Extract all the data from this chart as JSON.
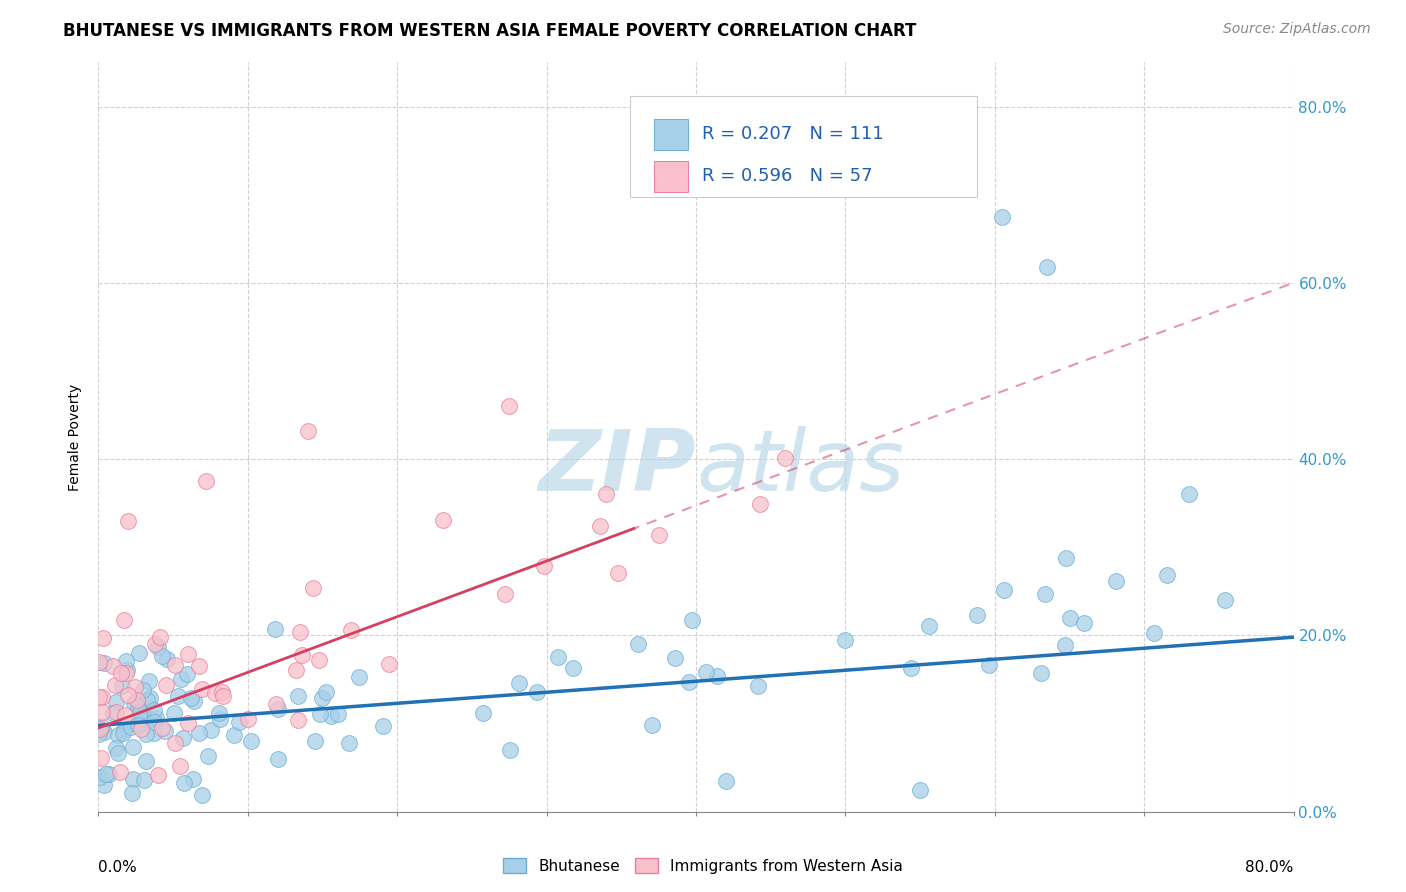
{
  "title": "BHUTANESE VS IMMIGRANTS FROM WESTERN ASIA FEMALE POVERTY CORRELATION CHART",
  "source": "Source: ZipAtlas.com",
  "ylabel": "Female Poverty",
  "ytick_labels": [
    "0.0%",
    "20.0%",
    "40.0%",
    "60.0%",
    "80.0%"
  ],
  "ytick_values": [
    0.0,
    0.2,
    0.4,
    0.6,
    0.8
  ],
  "xlim": [
    0.0,
    0.8
  ],
  "ylim": [
    0.0,
    0.85
  ],
  "legend1_R": "0.207",
  "legend1_N": "111",
  "legend2_R": "0.596",
  "legend2_N": "57",
  "bhutanese_color": "#a8cfe8",
  "bhutanese_edge": "#6aaed6",
  "western_asia_color": "#f7c0cb",
  "western_asia_edge": "#e87f9a",
  "trend_blue": "#2171b5",
  "trend_pink": "#d44060",
  "background_color": "#ffffff",
  "watermark_color": "#d0e4f0",
  "grid_color": "#cccccc",
  "title_fontsize": 12,
  "source_fontsize": 10,
  "axis_label_fontsize": 10,
  "tick_fontsize": 11,
  "legend_fontsize": 13
}
